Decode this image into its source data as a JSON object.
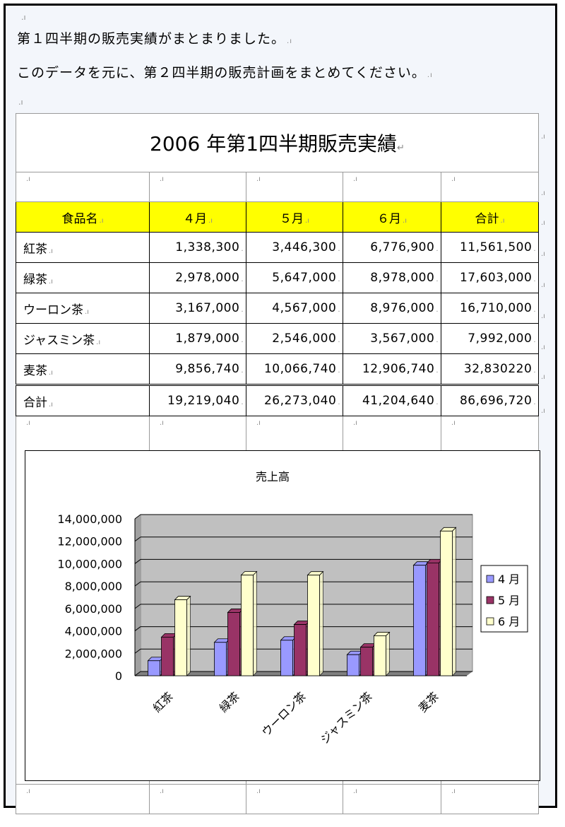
{
  "document": {
    "paragraphs": [
      "第１四半期の販売実績がまとまりました。",
      "このデータを元に、第２四半期の販売計画をまとめてください。"
    ],
    "para_mark": "↓",
    "cell_mark": ".ı"
  },
  "table": {
    "title": "2006 年第1四半期販売実績",
    "title_mark": "↵",
    "headers": [
      "食品名",
      "４月",
      "５月",
      "６月",
      "合計"
    ],
    "rows": [
      {
        "name": "紅茶",
        "cells": [
          "1,338,300",
          "3,446,300",
          "6,776,900",
          "11,561,500"
        ]
      },
      {
        "name": "緑茶",
        "cells": [
          "2,978,000",
          "5,647,000",
          "8,978,000",
          "17,603,000"
        ]
      },
      {
        "name": "ウーロン茶",
        "cells": [
          "3,167,000",
          "4,567,000",
          "8,976,000",
          "16,710,000"
        ]
      },
      {
        "name": "ジャスミン茶",
        "cells": [
          "1,879,000",
          "2,546,000",
          "3,567,000",
          "7,992,000"
        ]
      },
      {
        "name": "麦茶",
        "cells": [
          "9,856,740",
          "10,066,740",
          "12,906,740",
          "32,830220"
        ]
      }
    ],
    "total": {
      "name": "合計",
      "cells": [
        "19,219,040",
        "26,273,040",
        "41,204,640",
        "86,696,720"
      ]
    }
  },
  "chart_data": {
    "type": "bar",
    "title": "売上高",
    "categories": [
      "紅茶",
      "緑茶",
      "ウーロン茶",
      "ジャスミン茶",
      "麦茶"
    ],
    "series": [
      {
        "name": "4 月",
        "values": [
          1338300,
          2978000,
          3167000,
          1879000,
          9856740
        ],
        "color": "#9999ff"
      },
      {
        "name": "5 月",
        "values": [
          3446300,
          5647000,
          4567000,
          2546000,
          10066740
        ],
        "color": "#993366"
      },
      {
        "name": "6 月",
        "values": [
          6776900,
          8978000,
          8976000,
          3567000,
          12906740
        ],
        "color": "#ffffcc"
      }
    ],
    "y_ticks": [
      "0",
      "2,000,000",
      "4,000,000",
      "6,000,000",
      "8,000,000",
      "10,000,000",
      "12,000,000",
      "14,000,000"
    ],
    "ylim": [
      0,
      14000000
    ],
    "legend": "right",
    "grid": true,
    "plot_background": "#c0c0c0"
  }
}
